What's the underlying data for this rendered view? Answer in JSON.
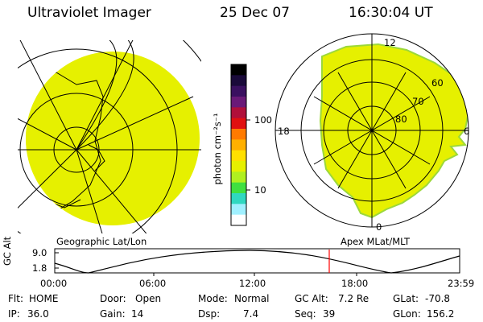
{
  "header": {
    "instrument": "Ultraviolet Imager",
    "date": "25 Dec 07",
    "time": "16:30:04 UT"
  },
  "left_panel": {
    "caption": "Geographic Lat/Lon"
  },
  "right_panel": {
    "caption": "Apex MLat/MLT",
    "mlt_labels": [
      "12",
      "18",
      "6",
      "0"
    ],
    "lat_labels": [
      "60",
      "70",
      "80"
    ]
  },
  "colorbar": {
    "unit_label": "photon cm⁻²s⁻¹",
    "ticks": [
      "100",
      "10"
    ],
    "colors": [
      "#000000",
      "#1a0a3a",
      "#3a1060",
      "#6a1a78",
      "#b0103a",
      "#e01010",
      "#ff7a00",
      "#ffb000",
      "#ffe000",
      "#e6f000",
      "#b0f020",
      "#40e040",
      "#30d8c0",
      "#a0f0ff",
      "#ffffff"
    ]
  },
  "timeline": {
    "ylabel": "GC Alt",
    "yticks": [
      "9.0",
      "1.8"
    ],
    "xticks": [
      "00:00",
      "06:00",
      "12:00",
      "18:00",
      "23:59"
    ],
    "marker_color": "#ff0000"
  },
  "metadata": [
    [
      {
        "k": "Flt:",
        "v": "HOME"
      },
      {
        "k": "Door:",
        "v": "Open"
      },
      {
        "k": "Mode:",
        "v": "Normal"
      },
      {
        "k": "GC Alt:",
        "v": "7.2 Re"
      },
      {
        "k": "GLat:",
        "v": "-70.8"
      }
    ],
    [
      {
        "k": "IP:",
        "v": "36.0"
      },
      {
        "k": "Gain:",
        "v": "14"
      },
      {
        "k": "Dsp:",
        "v": "7.4"
      },
      {
        "k": "Seq:",
        "v": "39"
      },
      {
        "k": "GLon:",
        "v": "156.2"
      }
    ]
  ],
  "colors": {
    "image_fill": "#e6f000",
    "image_edge": "#9cd83a",
    "grid": "#000000"
  }
}
